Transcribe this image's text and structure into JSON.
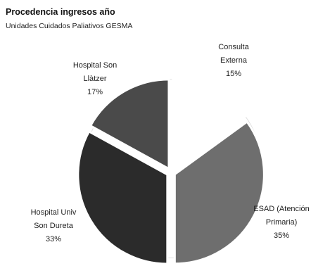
{
  "chart_data": {
    "type": "pie",
    "title": "Procedencia ingresos año",
    "subtitle": "Unidades Cuidados Paliativos GESMA",
    "slices": [
      {
        "name": "Consulta Externa",
        "label_lines": [
          "Consulta",
          "Externa"
        ],
        "pct_label": "15%",
        "value": 15,
        "color": "#ffffff"
      },
      {
        "name": "ESAD (Atención Primaria)",
        "label_lines": [
          "ESAD (Atención",
          "Primaria)"
        ],
        "pct_label": "35%",
        "value": 35,
        "color": "#6e6e6e"
      },
      {
        "name": "Hospital Univ Son Dureta",
        "label_lines": [
          "Hospital Univ",
          "Son Dureta"
        ],
        "pct_label": "33%",
        "value": 33,
        "color": "#2b2b2b"
      },
      {
        "name": "Hospital Son Llàtzer",
        "label_lines": [
          "Hospital Son",
          "Llàtzer"
        ],
        "pct_label": "17%",
        "value": 17,
        "color": "#4a4a4a"
      }
    ]
  }
}
